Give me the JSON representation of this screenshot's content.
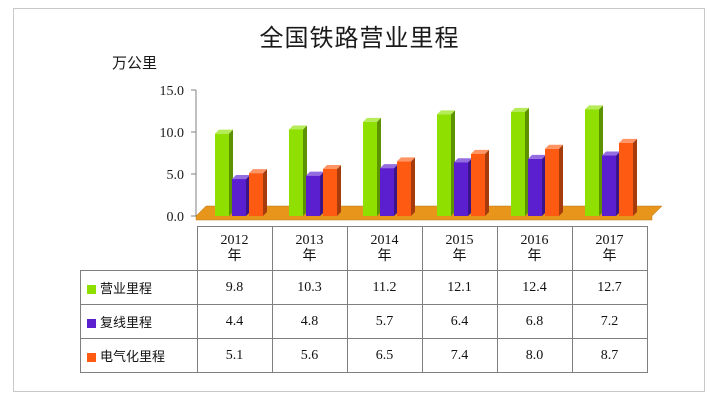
{
  "chart_data": {
    "type": "bar",
    "title": "全国铁路营业里程",
    "ylabel": "万公里",
    "ylim": [
      0,
      15
    ],
    "y_ticks": [
      "0.0",
      "5.0",
      "10.0",
      "15.0"
    ],
    "categories": [
      "2012",
      "2013",
      "2014",
      "2015",
      "2016",
      "2017"
    ],
    "category_suffix": "年",
    "series": [
      {
        "name": "营业里程",
        "color": "#8fe000",
        "values": [
          9.8,
          10.3,
          11.2,
          12.1,
          12.4,
          12.7
        ],
        "labels": [
          "9.8",
          "10.3",
          "11.2",
          "12.1",
          "12.4",
          "12.7"
        ]
      },
      {
        "name": "复线里程",
        "color": "#5b1fd0",
        "values": [
          4.4,
          4.8,
          5.7,
          6.4,
          6.8,
          7.2
        ],
        "labels": [
          "4.4",
          "4.8",
          "5.7",
          "6.4",
          "6.8",
          "7.2"
        ]
      },
      {
        "name": "电气化里程",
        "color": "#ff5a12",
        "values": [
          5.1,
          5.6,
          6.5,
          7.4,
          8.0,
          8.7
        ],
        "labels": [
          "5.1",
          "5.6",
          "6.5",
          "7.4",
          "8.0",
          "8.7"
        ]
      }
    ],
    "floor_color": "#e8951c",
    "grid": false,
    "legend": "table"
  }
}
